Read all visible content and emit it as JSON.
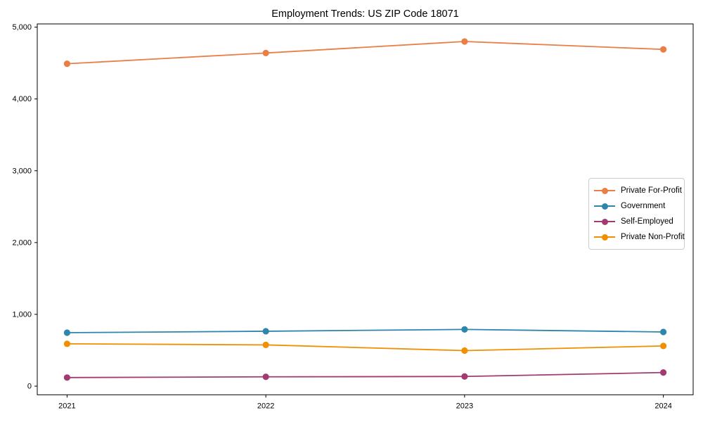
{
  "figure": {
    "background": "#ffffff"
  },
  "chart_data": {
    "type": "line",
    "title": "Employment Trends: US ZIP Code 18071",
    "x": [
      2021,
      2022,
      2023,
      2024
    ],
    "x_tick_labels": [
      "2021",
      "2022",
      "2023",
      "2024"
    ],
    "series": [
      {
        "name": "Private For-Profit",
        "color": "#EA7E45",
        "values": [
          4490,
          4640,
          4800,
          4690
        ]
      },
      {
        "name": "Government",
        "color": "#2E86AB",
        "values": [
          745,
          765,
          790,
          755
        ]
      },
      {
        "name": "Self-Employed",
        "color": "#A23B72",
        "values": [
          120,
          130,
          135,
          190
        ]
      },
      {
        "name": "Private Non-Profit",
        "color": "#F18F01",
        "values": [
          590,
          575,
          495,
          560
        ]
      }
    ],
    "yticks": [
      0,
      1000,
      2000,
      3000,
      4000,
      5000
    ],
    "y_tick_labels": [
      "0",
      "1,000",
      "2,000",
      "3,000",
      "4,000",
      "5,000"
    ],
    "ylim": [
      -120,
      5045
    ],
    "xlim": [
      2020.85,
      2024.15
    ],
    "grid": false,
    "legend_position": "center-right",
    "axis_color": "#000000",
    "marker": "circle"
  }
}
